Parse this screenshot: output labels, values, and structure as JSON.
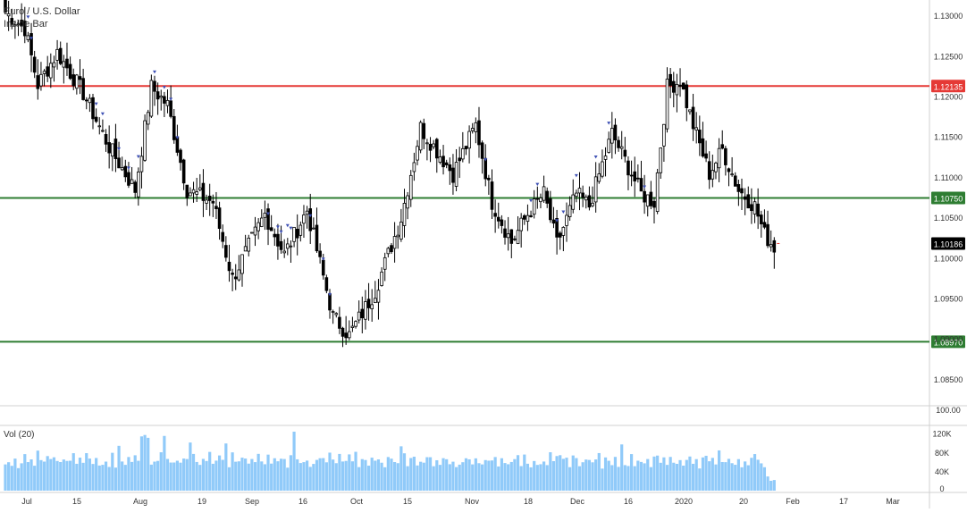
{
  "legend": {
    "symbol_title": "Euro / U.S. Dollar",
    "indicator": "Inside Bar"
  },
  "volume_legend": "Vol (20)",
  "colors": {
    "up_candle": "#ffffff",
    "down_candle": "#000000",
    "candle_border": "#000000",
    "volume_bar": "#90caf9",
    "resistance_line": "#e53935",
    "support_line": "#2e7d32",
    "marker": "#3f51b5",
    "last_price_bg": "#000000",
    "grid": "#e9e9e9",
    "axis_text": "#333333"
  },
  "chart_data": [
    {
      "type": "candlestick",
      "title": "",
      "ylim": [
        1.082,
        1.132
      ],
      "y_ticks": [
        "1.13000",
        "1.12500",
        "1.12000",
        "1.11500",
        "1.11000",
        "1.10500",
        "1.10000",
        "1.09500",
        "1.09000",
        "1.08500"
      ],
      "x_ticks": [
        "Jul",
        "15",
        "Aug",
        "19",
        "Sep",
        "16",
        "Oct",
        "15",
        "Nov",
        "18",
        "Dec",
        "16",
        "2020",
        "20",
        "Feb",
        "17",
        "Mar"
      ],
      "horizontal_levels": [
        {
          "price": 1.12135,
          "label": "1.12135",
          "color": "#e53935"
        },
        {
          "price": 1.1075,
          "label": "1.10750",
          "color": "#2e7d32"
        },
        {
          "price": 1.0897,
          "label": "1.08970",
          "color": "#2e7d32"
        }
      ],
      "last_price": {
        "value": 1.10186,
        "label": "1.10186"
      },
      "close_path": [
        {
          "i": 0,
          "close": 1.1305
        },
        {
          "i": 6,
          "close": 1.1285
        },
        {
          "i": 10,
          "close": 1.1215
        },
        {
          "i": 16,
          "close": 1.1255
        },
        {
          "i": 24,
          "close": 1.1205
        },
        {
          "i": 32,
          "close": 1.1138
        },
        {
          "i": 40,
          "close": 1.1085
        },
        {
          "i": 45,
          "close": 1.1212
        },
        {
          "i": 50,
          "close": 1.119
        },
        {
          "i": 56,
          "close": 1.1085
        },
        {
          "i": 64,
          "close": 1.107
        },
        {
          "i": 70,
          "close": 1.0975
        },
        {
          "i": 80,
          "close": 1.1055
        },
        {
          "i": 86,
          "close": 1.1005
        },
        {
          "i": 93,
          "close": 1.106
        },
        {
          "i": 101,
          "close": 1.0928
        },
        {
          "i": 106,
          "close": 1.0905
        },
        {
          "i": 114,
          "close": 1.096
        },
        {
          "i": 122,
          "close": 1.105
        },
        {
          "i": 128,
          "close": 1.1162
        },
        {
          "i": 138,
          "close": 1.1105
        },
        {
          "i": 145,
          "close": 1.1165
        },
        {
          "i": 150,
          "close": 1.107
        },
        {
          "i": 156,
          "close": 1.102
        },
        {
          "i": 161,
          "close": 1.1055
        },
        {
          "i": 166,
          "close": 1.108
        },
        {
          "i": 170,
          "close": 1.1018
        },
        {
          "i": 176,
          "close": 1.108
        },
        {
          "i": 180,
          "close": 1.1065
        },
        {
          "i": 187,
          "close": 1.1155
        },
        {
          "i": 196,
          "close": 1.108
        },
        {
          "i": 200,
          "close": 1.107
        },
        {
          "i": 204,
          "close": 1.1212
        },
        {
          "i": 208,
          "close": 1.122
        },
        {
          "i": 212,
          "close": 1.1165
        },
        {
          "i": 217,
          "close": 1.1105
        },
        {
          "i": 221,
          "close": 1.1135
        },
        {
          "i": 226,
          "close": 1.1085
        },
        {
          "i": 231,
          "close": 1.1065
        },
        {
          "i": 234,
          "close": 1.103
        },
        {
          "i": 237,
          "close": 1.1014
        }
      ],
      "inside_bar_markers": [
        7,
        8,
        28,
        30,
        35,
        38,
        41,
        46,
        49,
        51,
        53,
        81,
        84,
        85,
        87,
        88,
        94,
        98,
        100,
        148,
        162,
        164,
        170,
        172,
        176,
        182,
        186,
        197
      ]
    },
    {
      "type": "bar",
      "title": "Vol (20)",
      "ylim": [
        0,
        125000
      ],
      "y_ticks": [
        "120K",
        "80K",
        "40K",
        "0"
      ],
      "values_pattern": [
        62000,
        68000,
        58000,
        72000,
        55000,
        64000,
        70000,
        60000,
        66000,
        58000,
        75000,
        63000,
        57000,
        69000,
        61000
      ],
      "peaks": [
        {
          "i": 35,
          "value": 95000
        },
        {
          "i": 42,
          "value": 115000
        },
        {
          "i": 43,
          "value": 118000
        },
        {
          "i": 44,
          "value": 112000
        },
        {
          "i": 49,
          "value": 116000
        },
        {
          "i": 57,
          "value": 102000
        },
        {
          "i": 68,
          "value": 100000
        },
        {
          "i": 89,
          "value": 125000
        },
        {
          "i": 122,
          "value": 94000
        },
        {
          "i": 190,
          "value": 98000
        }
      ]
    }
  ],
  "annotations": {
    "price_axis_percent": "100.00"
  }
}
